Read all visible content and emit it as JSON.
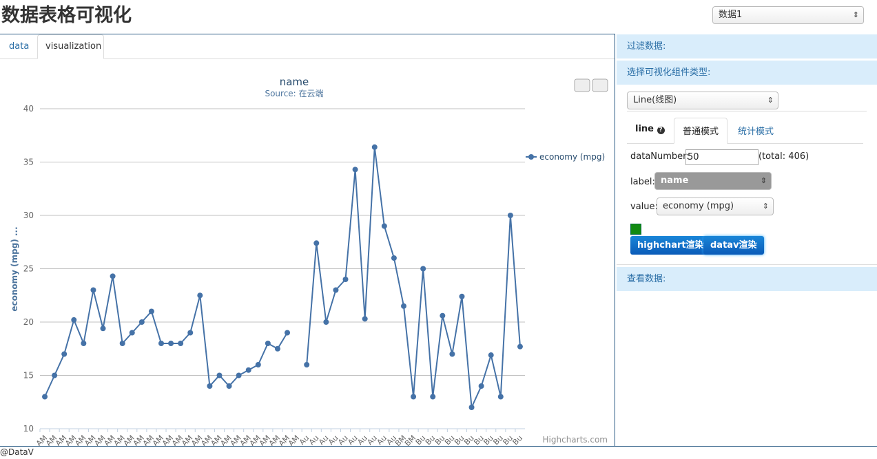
{
  "header": {
    "title": "数据表格可视化",
    "dataset_select": "数据1"
  },
  "tabs": [
    "data",
    "visualization"
  ],
  "chart_data": {
    "type": "line",
    "title": "name",
    "subtitle": "Source: 在云端",
    "y_label": "economy (mpg) ...",
    "credit": "Highcharts.com",
    "categories": [
      "AM",
      "AM",
      "AM",
      "AM",
      "AM",
      "AM",
      "AM",
      "AM",
      "AM",
      "AM",
      "AM",
      "AM",
      "AM",
      "AM",
      "AM",
      "AM",
      "AM",
      "AM",
      "AM",
      "AM",
      "AM",
      "AM",
      "AM",
      "AM",
      "AM",
      "AM",
      "AM",
      "Au",
      "Au",
      "Au",
      "Au",
      "Au",
      "Au",
      "Au",
      "Au",
      "Au",
      "Au",
      "BM",
      "BM",
      "Bu",
      "Bu",
      "Bu",
      "Bu",
      "Bu",
      "Bu",
      "Bu",
      "Bu",
      "Bu",
      "Bu",
      "Bu"
    ],
    "series": [
      {
        "name": "economy (mpg)",
        "color": "#4572a7",
        "values": [
          13,
          15,
          17,
          20.2,
          18,
          23,
          19.4,
          24.3,
          18,
          19,
          20,
          21,
          18,
          18,
          18,
          19,
          22.5,
          14,
          15,
          14,
          15,
          15.5,
          16,
          18,
          17.5,
          19,
          null,
          16,
          27.4,
          20,
          23,
          24,
          34.3,
          20.3,
          36.4,
          29,
          26,
          21.5,
          13,
          25,
          13,
          20.6,
          17,
          22.4,
          12,
          14,
          16.9,
          13,
          30,
          17.7
        ]
      }
    ],
    "ylim": [
      10,
      40
    ],
    "yticks": [
      10,
      15,
      20,
      25,
      30,
      35,
      40
    ],
    "grid": true
  },
  "panel": {
    "filter_heading": "过滤数据:",
    "type_heading": "选择可视化组件类型:",
    "type_select": "Line(线图)",
    "sub_tabs": [
      "line",
      "普通模式",
      "统计模式"
    ],
    "data_number_label": "dataNumber:",
    "data_number": "50",
    "total": "(total: 406)",
    "label_label": "label:",
    "label_select": "name",
    "value_label": "value:",
    "value_select": "economy (mpg)",
    "buttons": [
      "highchart渲染",
      "datav渲染"
    ],
    "view_heading": "查看数据:"
  },
  "footer": "@DataV"
}
